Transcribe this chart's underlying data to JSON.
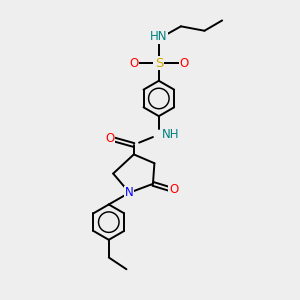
{
  "bg_color": "#eeeeee",
  "atom_colors": {
    "C": "#000000",
    "N": "#0000ff",
    "O": "#ff0000",
    "S": "#ccaa00",
    "NH": "#008080"
  },
  "bond_color": "#000000",
  "bond_width": 1.4,
  "font_size": 8.5
}
